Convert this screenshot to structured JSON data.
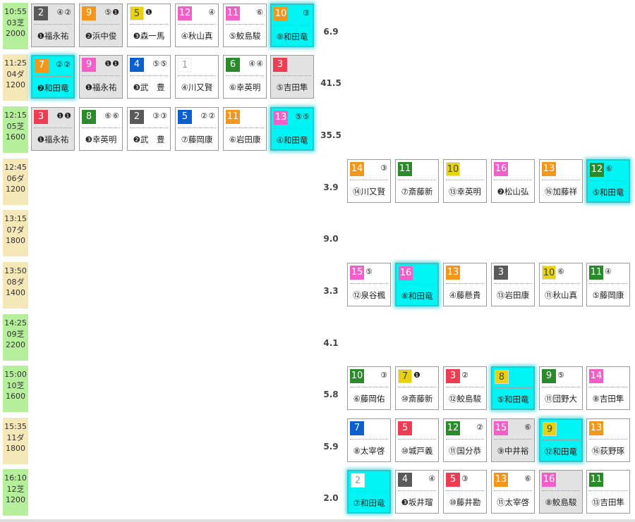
{
  "colors": {
    "frame": {
      "1": "#ffffff",
      "2": "#5a5a5a",
      "3": "#ee3c52",
      "4": "#0b5fcf",
      "5": "#e8d20c",
      "6": "#2b8a2b",
      "7": "#f2961c",
      "8": "#f25fc8"
    },
    "shiba": "#b6ef9c",
    "dirt": "#f4e7b8",
    "highlight": "#00f4f4"
  },
  "races": [
    {
      "time": "10:55",
      "course": "03芝",
      "distance": "2000",
      "surface": "shiba",
      "odds": "6.9",
      "group": "left",
      "horses": [
        {
          "num": "2",
          "frame": "2",
          "marks": "④②",
          "jockey": "❶福永祐",
          "gray": true
        },
        {
          "num": "9",
          "frame": "7",
          "marks": "⑤❶",
          "jockey": "❷浜中俊",
          "gray": true
        },
        {
          "num": "5",
          "frame": "5",
          "marks": "❶",
          "jockey": "❸森一馬",
          "marks_left": true
        },
        {
          "num": "12",
          "frame": "8",
          "marks": "④",
          "jockey": "④秋山真"
        },
        {
          "num": "11",
          "frame": "8",
          "marks": "⑥",
          "jockey": "⑤鮫島駿"
        },
        {
          "num": "10",
          "frame": "7",
          "marks": "③",
          "jockey": "⑧和田竜",
          "hl": true
        }
      ]
    },
    {
      "time": "11:25",
      "course": "04ダ",
      "distance": "1200",
      "surface": "dirt",
      "odds": "41.5",
      "group": "left",
      "horses": [
        {
          "num": "7",
          "frame": "7",
          "marks": "②②",
          "jockey": "❷和田竜",
          "hl": true
        },
        {
          "num": "9",
          "frame": "8",
          "marks": "❶❶",
          "jockey": "❶福永祐",
          "gray": true
        },
        {
          "num": "4",
          "frame": "4",
          "marks": "⑤⑤",
          "jockey": "❸武　豊"
        },
        {
          "num": "1",
          "frame": "1",
          "marks": "",
          "jockey": "④川又賢"
        },
        {
          "num": "6",
          "frame": "6",
          "marks": "④④",
          "jockey": "⑥幸英明"
        },
        {
          "num": "3",
          "frame": "3",
          "marks": "",
          "jockey": "⑤吉田隼",
          "gray": true
        }
      ]
    },
    {
      "time": "12:15",
      "course": "05芝",
      "distance": "1600",
      "surface": "shiba",
      "odds": "35.5",
      "group": "left",
      "horses": [
        {
          "num": "3",
          "frame": "3",
          "marks": "❶❶",
          "jockey": "❶福永祐",
          "gray": true
        },
        {
          "num": "8",
          "frame": "6",
          "marks": "⑥⑥",
          "jockey": "❸幸英明"
        },
        {
          "num": "2",
          "frame": "2",
          "marks": "③③",
          "jockey": "❷武　豊"
        },
        {
          "num": "5",
          "frame": "4",
          "marks": "②②",
          "jockey": "⑦藤岡康"
        },
        {
          "num": "11",
          "frame": "7",
          "marks": "",
          "jockey": "⑥岩田康"
        },
        {
          "num": "13",
          "frame": "8",
          "marks": "⑤⑤",
          "jockey": "④和田竜",
          "hl": true
        }
      ]
    },
    {
      "time": "12:45",
      "course": "06ダ",
      "distance": "1200",
      "surface": "dirt",
      "odds": "3.9",
      "group": "right",
      "horses": [
        {
          "num": "14",
          "frame": "7",
          "marks": "③",
          "jockey": "⑭川又賢"
        },
        {
          "num": "11",
          "frame": "6",
          "marks": "",
          "jockey": "⑦斎藤新"
        },
        {
          "num": "10",
          "frame": "5",
          "marks": "",
          "jockey": "⑬幸英明"
        },
        {
          "num": "16",
          "frame": "8",
          "marks": "",
          "jockey": "❷松山弘"
        },
        {
          "num": "13",
          "frame": "7",
          "marks": "",
          "jockey": "⑯加藤祥"
        },
        {
          "num": "12",
          "frame": "6",
          "marks": "⑥",
          "jockey": "⑤和田竜",
          "hl": true,
          "marks_left": true
        }
      ]
    },
    {
      "time": "13:15",
      "course": "07ダ",
      "distance": "1800",
      "surface": "dirt",
      "odds": "9.0",
      "group": "none",
      "horses": []
    },
    {
      "time": "13:50",
      "course": "08ダ",
      "distance": "1400",
      "surface": "dirt",
      "odds": "3.3",
      "group": "right",
      "horses": [
        {
          "num": "15",
          "frame": "8",
          "marks": "⑤",
          "jockey": "⑫泉谷楓",
          "marks_left": true
        },
        {
          "num": "16",
          "frame": "8",
          "marks": "",
          "jockey": "⑧和田竜",
          "hl": true
        },
        {
          "num": "13",
          "frame": "7",
          "marks": "",
          "jockey": "④藤懸貴"
        },
        {
          "num": "3",
          "frame": "2",
          "marks": "",
          "jockey": "⑬岩田康"
        },
        {
          "num": "10",
          "frame": "5",
          "marks": "⑥",
          "jockey": "⑪秋山真",
          "marks_left": true
        },
        {
          "num": "11",
          "frame": "6",
          "marks": "④",
          "jockey": "⑤藤岡康",
          "marks_left": true
        }
      ]
    },
    {
      "time": "14:25",
      "course": "09芝",
      "distance": "2200",
      "surface": "shiba",
      "odds": "4.1",
      "group": "none",
      "horses": []
    },
    {
      "time": "15:00",
      "course": "10芝",
      "distance": "1600",
      "surface": "shiba",
      "odds": "5.8",
      "group": "right",
      "horses": [
        {
          "num": "10",
          "frame": "6",
          "marks": "③",
          "jockey": "⑥藤岡佑"
        },
        {
          "num": "7",
          "frame": "5",
          "marks": "❶",
          "jockey": "⑩斎藤新",
          "marks_left": true
        },
        {
          "num": "3",
          "frame": "3",
          "marks": "②",
          "jockey": "⑫鮫島駿",
          "marks_left": true
        },
        {
          "num": "8",
          "frame": "5",
          "marks": "",
          "jockey": "⑤和田竜",
          "hl": true
        },
        {
          "num": "9",
          "frame": "6",
          "marks": "⑤",
          "jockey": "⑪団野大",
          "marks_left": true
        },
        {
          "num": "14",
          "frame": "8",
          "marks": "",
          "jockey": "⑧吉田隼"
        }
      ]
    },
    {
      "time": "15:35",
      "course": "11ダ",
      "distance": "1800",
      "surface": "dirt",
      "odds": "5.9",
      "group": "right",
      "horses": [
        {
          "num": "7",
          "frame": "4",
          "marks": "",
          "jockey": "⑧太宰啓"
        },
        {
          "num": "5",
          "frame": "3",
          "marks": "",
          "jockey": "⑩城戸義"
        },
        {
          "num": "12",
          "frame": "6",
          "marks": "②",
          "jockey": "⑪国分恭"
        },
        {
          "num": "15",
          "frame": "8",
          "marks": "⑥",
          "jockey": "⑨中井裕",
          "gray": true
        },
        {
          "num": "9",
          "frame": "5",
          "marks": "",
          "jockey": "⑫和田竜",
          "hl": true
        },
        {
          "num": "13",
          "frame": "7",
          "marks": "",
          "jockey": "⑯荻野琢"
        }
      ]
    },
    {
      "time": "16:10",
      "course": "12芝",
      "distance": "1200",
      "surface": "shiba",
      "odds": "2.0",
      "group": "right",
      "horses": [
        {
          "num": "2",
          "frame": "1",
          "marks": "",
          "jockey": "⑦和田竜",
          "hl": true
        },
        {
          "num": "4",
          "frame": "2",
          "marks": "④",
          "jockey": "❸坂井瑠"
        },
        {
          "num": "5",
          "frame": "3",
          "marks": "③",
          "jockey": "⑩藤井勘",
          "marks_left": true
        },
        {
          "num": "13",
          "frame": "7",
          "marks": "⑥",
          "jockey": "⑪太宰啓"
        },
        {
          "num": "16",
          "frame": "8",
          "marks": "",
          "jockey": "⑧鮫島駿",
          "gray": true
        },
        {
          "num": "11",
          "frame": "6",
          "marks": "",
          "jockey": "⑬吉田隼"
        }
      ]
    }
  ]
}
